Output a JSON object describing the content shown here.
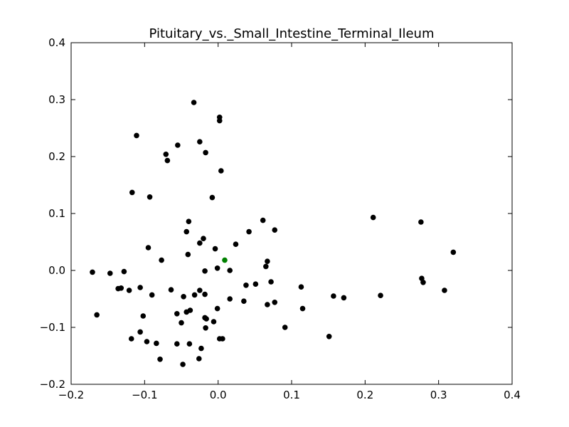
{
  "chart_data": {
    "type": "scatter",
    "title": "Pituitary_vs._Small_Intestine_Terminal_Ileum",
    "xlabel": "",
    "ylabel": "",
    "xlim": [
      -0.2,
      0.4
    ],
    "ylim": [
      -0.2,
      0.4
    ],
    "x_ticks": [
      -0.2,
      -0.1,
      0.0,
      0.1,
      0.2,
      0.3,
      0.4
    ],
    "y_ticks": [
      -0.2,
      -0.1,
      0.0,
      0.1,
      0.2,
      0.3,
      0.4
    ],
    "x_tick_labels": [
      "−0.2",
      "−0.1",
      "0.0",
      "0.1",
      "0.2",
      "0.3",
      "0.4"
    ],
    "y_tick_labels": [
      "−0.2",
      "−0.1",
      "0.0",
      "0.1",
      "0.2",
      "0.3",
      "0.4"
    ],
    "grid": false,
    "series": [
      {
        "color": "#000000",
        "points": [
          [
            -0.033,
            0.295
          ],
          [
            0.002,
            0.269
          ],
          [
            0.002,
            0.263
          ],
          [
            -0.111,
            0.237
          ],
          [
            -0.025,
            0.226
          ],
          [
            -0.055,
            0.22
          ],
          [
            -0.071,
            0.204
          ],
          [
            -0.017,
            0.207
          ],
          [
            -0.069,
            0.193
          ],
          [
            0.004,
            0.175
          ],
          [
            -0.117,
            0.137
          ],
          [
            -0.093,
            0.129
          ],
          [
            -0.008,
            0.128
          ],
          [
            0.211,
            0.093
          ],
          [
            0.276,
            0.085
          ],
          [
            -0.04,
            0.086
          ],
          [
            0.061,
            0.088
          ],
          [
            0.077,
            0.071
          ],
          [
            0.042,
            0.068
          ],
          [
            -0.043,
            0.068
          ],
          [
            -0.02,
            0.056
          ],
          [
            0.024,
            0.046
          ],
          [
            -0.025,
            0.048
          ],
          [
            -0.095,
            0.04
          ],
          [
            -0.004,
            0.038
          ],
          [
            0.32,
            0.032
          ],
          [
            -0.041,
            0.028
          ],
          [
            -0.077,
            0.018
          ],
          [
            0.067,
            0.016
          ],
          [
            0.065,
            0.007
          ],
          [
            -0.001,
            0.004
          ],
          [
            0.016,
            0.0
          ],
          [
            -0.018,
            -0.001
          ],
          [
            -0.171,
            -0.003
          ],
          [
            -0.147,
            -0.005
          ],
          [
            -0.128,
            -0.002
          ],
          [
            0.277,
            -0.014
          ],
          [
            0.279,
            -0.021
          ],
          [
            0.072,
            -0.02
          ],
          [
            0.051,
            -0.024
          ],
          [
            0.038,
            -0.026
          ],
          [
            0.113,
            -0.029
          ],
          [
            -0.136,
            -0.032
          ],
          [
            -0.132,
            -0.031
          ],
          [
            -0.121,
            -0.035
          ],
          [
            -0.106,
            -0.03
          ],
          [
            -0.064,
            -0.034
          ],
          [
            -0.025,
            -0.035
          ],
          [
            0.308,
            -0.035
          ],
          [
            -0.018,
            -0.042
          ],
          [
            -0.032,
            -0.043
          ],
          [
            -0.09,
            -0.043
          ],
          [
            -0.047,
            -0.046
          ],
          [
            0.157,
            -0.045
          ],
          [
            0.171,
            -0.048
          ],
          [
            0.221,
            -0.044
          ],
          [
            0.016,
            -0.05
          ],
          [
            0.035,
            -0.054
          ],
          [
            0.077,
            -0.056
          ],
          [
            0.067,
            -0.06
          ],
          [
            0.115,
            -0.067
          ],
          [
            -0.001,
            -0.067
          ],
          [
            -0.038,
            -0.07
          ],
          [
            -0.043,
            -0.073
          ],
          [
            -0.056,
            -0.076
          ],
          [
            -0.165,
            -0.078
          ],
          [
            -0.102,
            -0.08
          ],
          [
            -0.018,
            -0.083
          ],
          [
            -0.016,
            -0.085
          ],
          [
            -0.006,
            -0.09
          ],
          [
            -0.05,
            -0.092
          ],
          [
            0.091,
            -0.1
          ],
          [
            -0.017,
            -0.101
          ],
          [
            -0.106,
            -0.108
          ],
          [
            -0.118,
            -0.12
          ],
          [
            0.002,
            -0.12
          ],
          [
            0.006,
            -0.12
          ],
          [
            0.151,
            -0.116
          ],
          [
            -0.097,
            -0.125
          ],
          [
            -0.084,
            -0.128
          ],
          [
            -0.056,
            -0.129
          ],
          [
            -0.039,
            -0.129
          ],
          [
            -0.023,
            -0.137
          ],
          [
            -0.079,
            -0.156
          ],
          [
            -0.026,
            -0.155
          ],
          [
            -0.048,
            -0.165
          ]
        ]
      },
      {
        "color": "#008000",
        "points": [
          [
            0.009,
            0.018
          ]
        ]
      }
    ]
  }
}
